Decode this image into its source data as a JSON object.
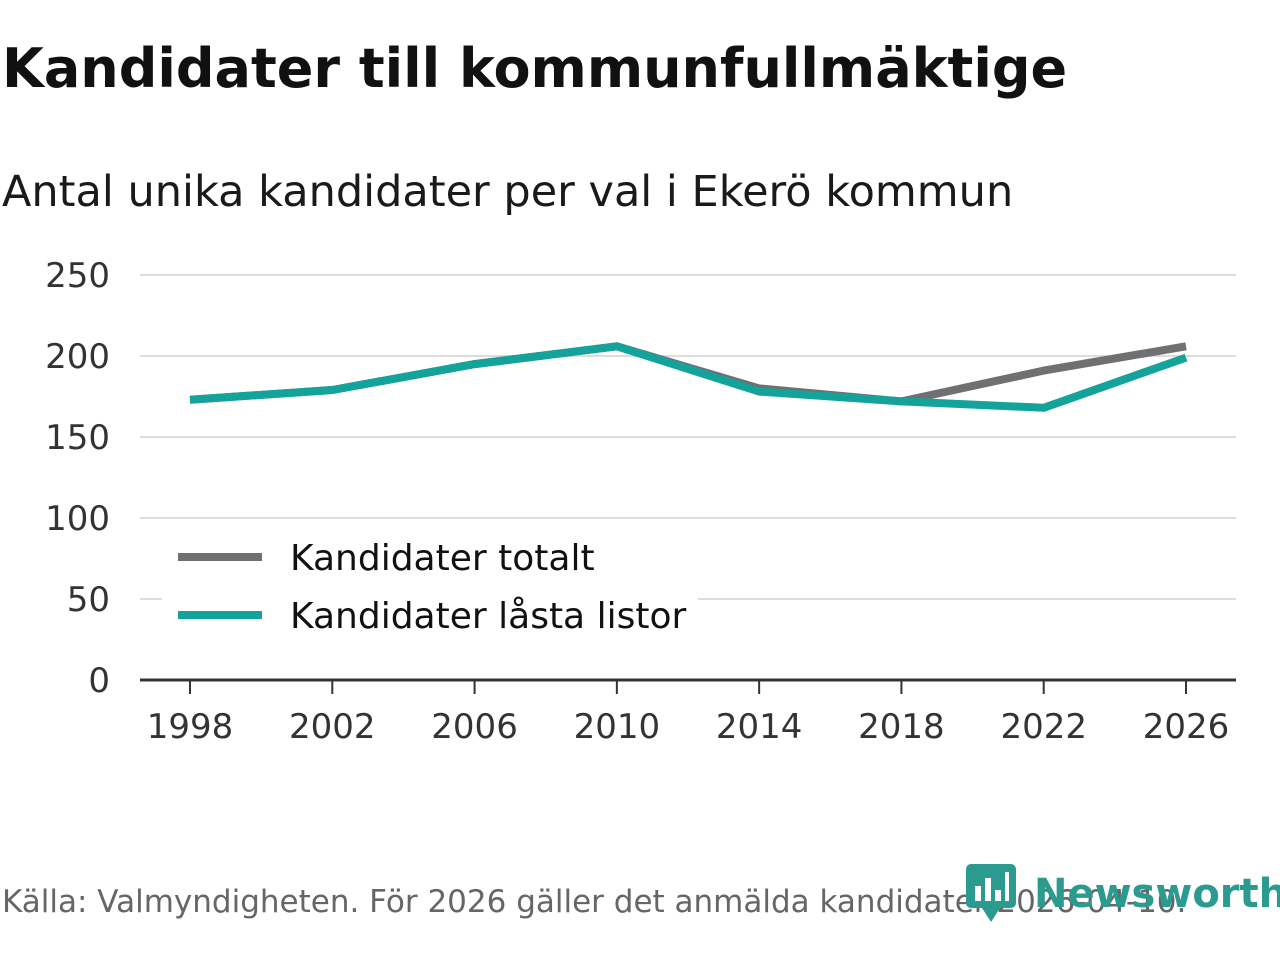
{
  "header": {
    "title": "Kandidater till kommunfullmäktige",
    "subtitle": "Antal unika kandidater per val i Ekerö kommun"
  },
  "footer": {
    "source": "Källa: Valmyndigheten. För 2026 gäller det anmälda kandidater 2026-04-10."
  },
  "brand": {
    "name": "Newsworthy",
    "icon": "newsworthy-logo-icon"
  },
  "colors": {
    "total": "#707073",
    "locked": "#14a39a",
    "grid": "#dddddd",
    "axis": "#333333",
    "brand": "#2b9a8f"
  },
  "chart_data": {
    "type": "line",
    "title": "Kandidater till kommunfullmäktige",
    "subtitle": "Antal unika kandidater per val i Ekerö kommun",
    "xlabel": "",
    "ylabel": "",
    "x": [
      1998,
      2002,
      2006,
      2010,
      2014,
      2018,
      2022,
      2026
    ],
    "x_tick_labels": [
      "1998",
      "2002",
      "2006",
      "2010",
      "2014",
      "2018",
      "2022",
      "2026"
    ],
    "y_ticks": [
      0,
      50,
      100,
      150,
      200,
      250
    ],
    "y_tick_labels": [
      "0",
      "50",
      "100",
      "150",
      "200",
      "250"
    ],
    "ylim": [
      0,
      250
    ],
    "grid": true,
    "legend_position": "lower-left",
    "series": [
      {
        "name": "Kandidater totalt",
        "color": "#707073",
        "values": [
          173,
          179,
          195,
          206,
          180,
          172,
          191,
          206
        ]
      },
      {
        "name": "Kandidater låsta listor",
        "color": "#14a39a",
        "values": [
          173,
          179,
          195,
          206,
          178,
          172,
          168,
          199
        ]
      }
    ]
  }
}
